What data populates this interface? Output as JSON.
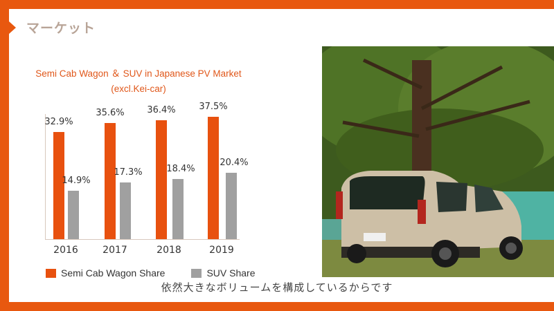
{
  "slide": {
    "title": "マーケット",
    "caption": "依然大きなボリュームを構成しているからです",
    "colors": {
      "accent": "#e8580f",
      "semi_bar": "#e8510f",
      "suv_bar": "#a0a0a0",
      "title_text": "#b8a497",
      "chart_title": "#e0571a"
    }
  },
  "chart_data": {
    "type": "bar",
    "title": "Semi Cab Wagon ＆ SUV in Japanese PV Market",
    "subtitle": "(excl.Kei-car)",
    "categories": [
      "2016",
      "2017",
      "2018",
      "2019"
    ],
    "series": [
      {
        "name": "Semi Cab Wagon Share",
        "values": [
          32.9,
          35.6,
          36.4,
          37.5
        ],
        "labels": [
          "32.9%",
          "35.6%",
          "36.4%",
          "37.5%"
        ],
        "color": "#e8510f"
      },
      {
        "name": "SUV Share",
        "values": [
          14.9,
          17.3,
          18.4,
          20.4
        ],
        "labels": [
          "14.9%",
          "17.3%",
          "18.4%",
          "20.4%"
        ],
        "color": "#a0a0a0"
      }
    ],
    "xlabel": "",
    "ylabel": "",
    "ylim": [
      0,
      38.5
    ],
    "grid": false,
    "legend_position": "bottom"
  },
  "photo": {
    "alt": "Beige Citroën Berlingo parked under a large tree by a lake"
  }
}
